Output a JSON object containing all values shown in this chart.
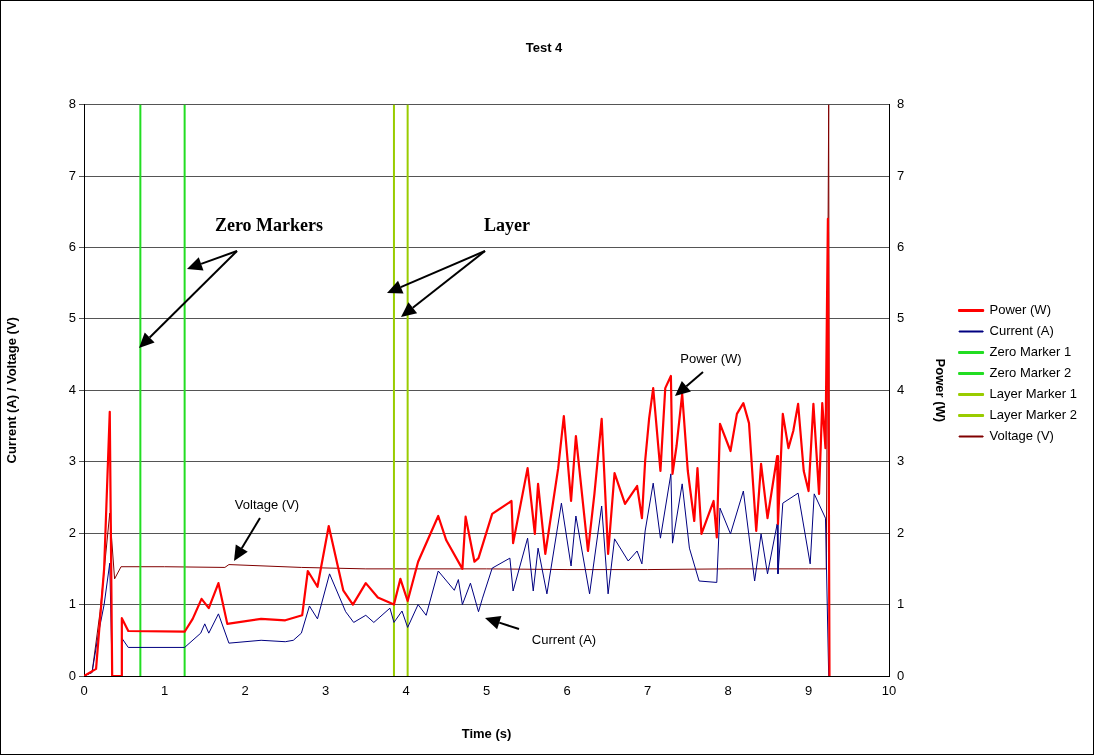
{
  "chart_data": {
    "type": "line",
    "title": "Test 4",
    "xlabel": "Time (s)",
    "ylabel": "Current (A) / Voltage (V)",
    "y2label": "Power (W)",
    "xlim": [
      0,
      10
    ],
    "xticks": [
      0,
      1,
      2,
      3,
      4,
      5,
      6,
      7,
      8,
      9,
      10
    ],
    "ylim": [
      0,
      8
    ],
    "yticks": [
      0,
      1,
      2,
      3,
      4,
      5,
      6,
      7,
      8
    ],
    "y2lim": [
      0,
      8
    ],
    "y2ticks": [
      0,
      1,
      2,
      3,
      4,
      5,
      6,
      7,
      8
    ],
    "grid": "y",
    "legend": "right",
    "marker": "none",
    "line_style": "solid",
    "annotations": [
      "Zero Markers",
      "Layer",
      "Power (W)",
      "Voltage (V)",
      "Current (A)"
    ],
    "series": [
      {
        "name": "Current (A)",
        "color": "#000080",
        "x": [
          0,
          0.1,
          0.18,
          0.25,
          0.32,
          0.35,
          0.46,
          0.47,
          0.55,
          1.25,
          1.45,
          1.5,
          1.55,
          1.67,
          1.8,
          2.2,
          2.5,
          2.6,
          2.7,
          2.8,
          2.9,
          3.05,
          3.25,
          3.35,
          3.5,
          3.6,
          3.8,
          3.85,
          3.95,
          4.02,
          4.15,
          4.25,
          4.4,
          4.6,
          4.65,
          4.7,
          4.8,
          4.9,
          4.95,
          5.07,
          5.29,
          5.33,
          5.51,
          5.58,
          5.64,
          5.75,
          5.93,
          6.05,
          6.11,
          6.28,
          6.43,
          6.51,
          6.59,
          6.76,
          6.87,
          6.93,
          6.97,
          7.07,
          7.16,
          7.29,
          7.31,
          7.43,
          7.52,
          7.64,
          7.86,
          7.9,
          8.03,
          8.19,
          8.33,
          8.41,
          8.49,
          8.61,
          8.62,
          8.68,
          8.87,
          9.02,
          9.07,
          9.21,
          9.25
        ],
        "values": [
          0,
          0.05,
          0.6,
          1.0,
          1.58,
          0,
          0,
          0.53,
          0.4,
          0.4,
          0.6,
          0.73,
          0.6,
          0.87,
          0.46,
          0.5,
          0.48,
          0.5,
          0.6,
          0.98,
          0.8,
          1.43,
          0.9,
          0.75,
          0.85,
          0.75,
          0.95,
          0.75,
          0.91,
          0.68,
          1.0,
          0.85,
          1.47,
          1.2,
          1.35,
          1.0,
          1.3,
          0.9,
          1.09,
          1.51,
          1.65,
          1.19,
          1.93,
          1.19,
          1.79,
          1.15,
          2.42,
          1.54,
          2.24,
          1.15,
          2.38,
          1.15,
          1.92,
          1.61,
          1.75,
          1.57,
          2.03,
          2.7,
          1.93,
          2.83,
          1.86,
          2.69,
          1.79,
          1.33,
          1.31,
          2.35,
          1.99,
          2.59,
          1.33,
          1.99,
          1.43,
          2.13,
          1.43,
          2.42,
          2.56,
          1.57,
          2.55,
          2.21,
          0
        ]
      },
      {
        "name": "Zero Marker 1",
        "color": "#22dd22",
        "x": [
          0.7,
          0.7
        ],
        "values": [
          0,
          8
        ]
      },
      {
        "name": "Zero Marker 2",
        "color": "#22dd22",
        "x": [
          1.25,
          1.25
        ],
        "values": [
          0,
          8
        ]
      },
      {
        "name": "Layer Marker 1",
        "color": "#99cc00",
        "x": [
          3.85,
          3.85
        ],
        "values": [
          0,
          8
        ]
      },
      {
        "name": "Layer Marker 2",
        "color": "#99cc00",
        "x": [
          4.02,
          4.02
        ],
        "values": [
          0,
          8
        ]
      },
      {
        "name": "Power (W)",
        "color": "#ff0000",
        "axis": "y2",
        "x": [
          0,
          0.15,
          0.25,
          0.32,
          0.35,
          0.46,
          0.47,
          0.55,
          1.25,
          1.35,
          1.46,
          1.55,
          1.67,
          1.78,
          2.2,
          2.5,
          2.71,
          2.78,
          2.9,
          3.04,
          3.22,
          3.34,
          3.5,
          3.65,
          3.85,
          3.93,
          4.02,
          4.15,
          4.4,
          4.5,
          4.7,
          4.74,
          4.85,
          4.9,
          5.07,
          5.31,
          5.33,
          5.51,
          5.6,
          5.64,
          5.73,
          5.89,
          5.96,
          6.05,
          6.11,
          6.26,
          6.34,
          6.43,
          6.51,
          6.59,
          6.72,
          6.87,
          6.93,
          6.97,
          7.02,
          7.07,
          7.16,
          7.22,
          7.29,
          7.31,
          7.36,
          7.43,
          7.5,
          7.58,
          7.62,
          7.67,
          7.82,
          7.86,
          7.9,
          8.03,
          8.11,
          8.19,
          8.26,
          8.35,
          8.41,
          8.49,
          8.61,
          8.62,
          8.68,
          8.75,
          8.81,
          8.87,
          8.94,
          9.0,
          9.06,
          9.13,
          9.17,
          9.21,
          9.24,
          9.26
        ],
        "values": [
          0,
          0.1,
          1.5,
          3.7,
          0,
          0,
          0.81,
          0.63,
          0.62,
          0.8,
          1.08,
          0.95,
          1.3,
          0.73,
          0.8,
          0.78,
          0.85,
          1.47,
          1.25,
          2.1,
          1.2,
          1.0,
          1.3,
          1.1,
          1.0,
          1.36,
          1.05,
          1.6,
          2.24,
          1.9,
          1.5,
          2.23,
          1.6,
          1.65,
          2.27,
          2.45,
          1.86,
          2.91,
          1.99,
          2.69,
          1.71,
          2.91,
          3.64,
          2.45,
          3.36,
          1.75,
          2.55,
          3.6,
          1.71,
          2.84,
          2.41,
          2.66,
          2.21,
          3.01,
          3.61,
          4.03,
          2.87,
          4.03,
          4.2,
          2.83,
          3.22,
          3.95,
          2.87,
          2.17,
          2.91,
          1.99,
          2.45,
          1.94,
          3.53,
          3.15,
          3.67,
          3.82,
          3.54,
          2.03,
          2.97,
          2.21,
          3.08,
          2.13,
          3.67,
          3.19,
          3.43,
          3.81,
          2.87,
          2.59,
          3.81,
          2.55,
          3.82,
          3.19,
          6.4,
          0
        ]
      },
      {
        "name": "Voltage (V)",
        "color": "#800000",
        "x": [
          0,
          0.1,
          0.2,
          0.32,
          0.38,
          0.46,
          1.0,
          1.75,
          1.8,
          2.7,
          3.5,
          4.0,
          5.0,
          6.0,
          7.0,
          8.0,
          9.0,
          9.22,
          9.25,
          9.26
        ],
        "values": [
          0,
          0.05,
          0.9,
          2.28,
          1.36,
          1.53,
          1.53,
          1.52,
          1.56,
          1.52,
          1.5,
          1.5,
          1.5,
          1.49,
          1.49,
          1.5,
          1.5,
          1.5,
          8,
          0
        ]
      }
    ]
  }
}
